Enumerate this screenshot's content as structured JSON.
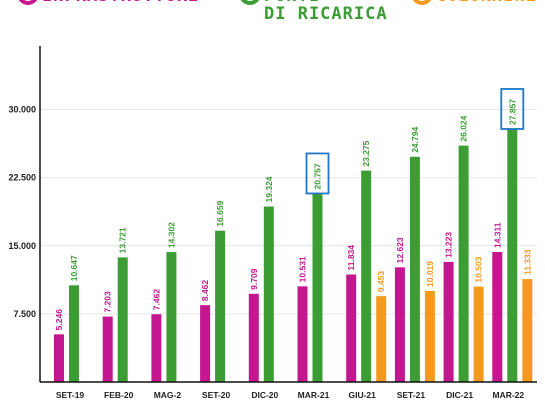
{
  "colors": {
    "infrastrutture": "#c4168f",
    "punti": "#3c9d35",
    "colonnine": "#f3991e",
    "highlight_box": "#1f78c8",
    "axis": "#111111",
    "grid": "#e6e6e6"
  },
  "legend": {
    "infrastrutture_label": "INFRASTRUTTURE",
    "punti_line1": "PUNTI",
    "punti_line2": "DI RICARICA",
    "colonnine_label": "COLONNINE"
  },
  "chart_data": {
    "type": "bar",
    "categories": [
      "SET-19",
      "FEB-20",
      "MAG-2",
      "SET-20",
      "DIC-20",
      "MAR-21",
      "GIU-21",
      "SET-21",
      "DIC-21",
      "MAR-22"
    ],
    "series": [
      {
        "name": "INFRASTRUTTURE",
        "color": "#c4168f",
        "values": [
          5246,
          7203,
          7462,
          8462,
          9709,
          10531,
          11834,
          12623,
          13223,
          14311
        ],
        "labels": [
          "5.246",
          "7.203",
          "7.462",
          "8.462",
          "9.709",
          "10.531",
          "11.834",
          "12.623",
          "13.223",
          "14.311"
        ]
      },
      {
        "name": "PUNTI DI RICARICA",
        "color": "#3c9d35",
        "values": [
          10647,
          13721,
          14302,
          16659,
          19324,
          20757,
          23275,
          24794,
          26024,
          27857
        ],
        "labels": [
          "10.647",
          "13.721",
          "14.302",
          "16.659",
          "19.324",
          "20.757",
          "23.275",
          "24.794",
          "26.024",
          "27.857"
        ],
        "highlighted": [
          "MAR-21",
          "MAR-22"
        ]
      },
      {
        "name": "COLONNINE",
        "color": "#f3991e",
        "values": [
          null,
          null,
          null,
          null,
          null,
          null,
          9453,
          10019,
          10503,
          11333
        ],
        "labels": [
          null,
          null,
          null,
          null,
          null,
          null,
          "9.453",
          "10.019",
          "10.503",
          "11.333"
        ]
      }
    ],
    "y_ticks": [
      7500,
      15000,
      22500,
      30000
    ],
    "y_tick_labels": [
      "7.500",
      "15.000",
      "22.500",
      "30.000"
    ],
    "ylim": [
      0,
      36000
    ],
    "grid": true,
    "legend_position": "top"
  }
}
